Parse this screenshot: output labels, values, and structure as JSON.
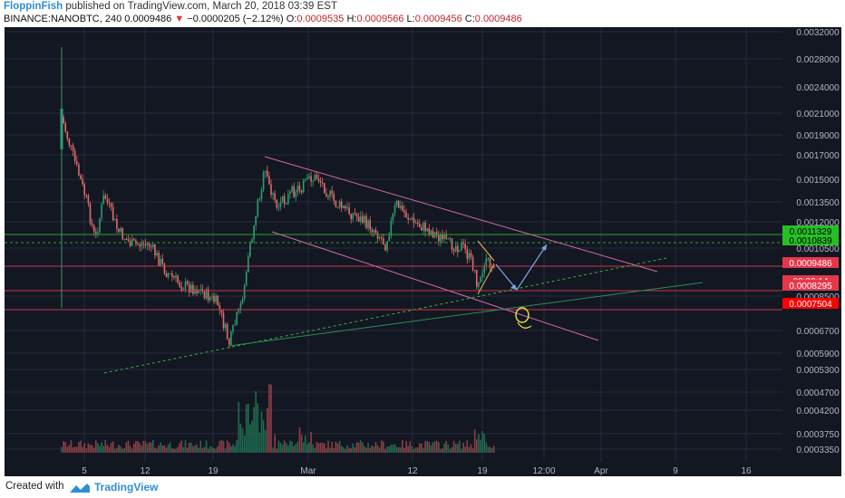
{
  "header": {
    "author": "FloppinFish",
    "published": "published on TradingView.com, March 20, 2018 03:39 EST",
    "symbol": "BINANCE:NANOBTC, 240",
    "last": "0.0009486",
    "change": "−0.0000205 (−2.12%)",
    "o_label": "O:",
    "o": "0.0009535",
    "h_label": "H:",
    "h": "0.0009566",
    "l_label": "L:",
    "l": "0.0009456",
    "c_label": "C:",
    "c": "0.0009486"
  },
  "footer": {
    "created_with": "Created with",
    "brand": "TradingView"
  },
  "chart_data": {
    "type": "candlestick",
    "title": "",
    "x_ticks": [
      "5",
      "12",
      "19",
      "Mar",
      "12",
      "19",
      "12:00",
      "Apr",
      "9",
      "16"
    ],
    "y_ticks": [
      "0.0032000",
      "0.0028000",
      "0.0024000",
      "0.0021000",
      "0.0019000",
      "0.0017000",
      "0.0015000",
      "0.0013500",
      "0.0012000",
      "0.0010500",
      "0.0008500",
      "0.0006700",
      "0.0005900",
      "0.0005300",
      "0.0004700",
      "0.0004200",
      "0.0003750",
      "0.0003350"
    ],
    "price_labels": [
      {
        "value": "0.0011329",
        "color": "#26c026",
        "text_color": "#000000"
      },
      {
        "value": "0.0010839",
        "color": "#26c026",
        "text_color": "#000000"
      },
      {
        "value": "0.0009486",
        "color": "#e6374a",
        "text_color": "#ffffff"
      },
      {
        "value": "03:20:14",
        "color": "#e6374a",
        "text_color": "#ffffff"
      },
      {
        "value": "0.0008295",
        "color": "#e6374a",
        "text_color": "#ffffff"
      },
      {
        "value": "0.0007504",
        "color": "#ff0000",
        "text_color": "#ffffff"
      }
    ],
    "key_prices": {
      "high": 0.00295,
      "low": 0.00059,
      "last": 0.0009486
    },
    "colors": {
      "up": "#2e9e6e",
      "down": "#e26b6b",
      "background": "#131722",
      "grid": "#262b39"
    },
    "grid": true
  }
}
